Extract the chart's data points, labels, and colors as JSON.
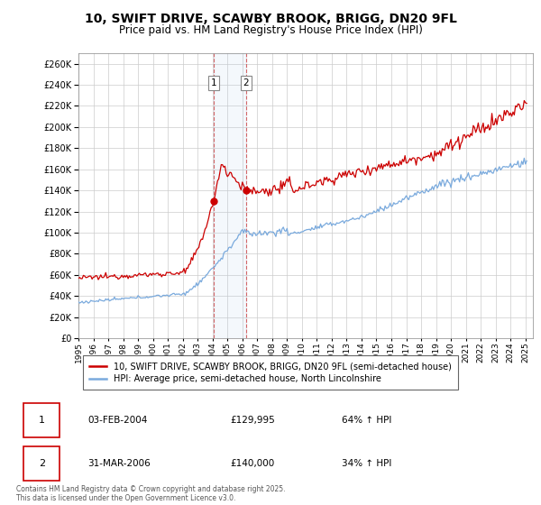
{
  "title": "10, SWIFT DRIVE, SCAWBY BROOK, BRIGG, DN20 9FL",
  "subtitle": "Price paid vs. HM Land Registry's House Price Index (HPI)",
  "title_fontsize": 10,
  "subtitle_fontsize": 8.5,
  "ylim": [
    0,
    270000
  ],
  "ytick_step": 20000,
  "background_color": "#ffffff",
  "grid_color": "#cccccc",
  "red_color": "#cc0000",
  "blue_color": "#7aaadd",
  "marker1_date_idx": 109,
  "marker2_date_idx": 135,
  "marker1_label": "1",
  "marker2_label": "2",
  "marker1_date": "03-FEB-2004",
  "marker1_price": "£129,995",
  "marker1_hpi": "64% ↑ HPI",
  "marker2_date": "31-MAR-2006",
  "marker2_price": "£140,000",
  "marker2_hpi": "34% ↑ HPI",
  "legend1": "10, SWIFT DRIVE, SCAWBY BROOK, BRIGG, DN20 9FL (semi-detached house)",
  "legend2": "HPI: Average price, semi-detached house, North Lincolnshire",
  "footer": "Contains HM Land Registry data © Crown copyright and database right 2025.\nThis data is licensed under the Open Government Licence v3.0.",
  "start_year": 1995,
  "n_months": 362
}
